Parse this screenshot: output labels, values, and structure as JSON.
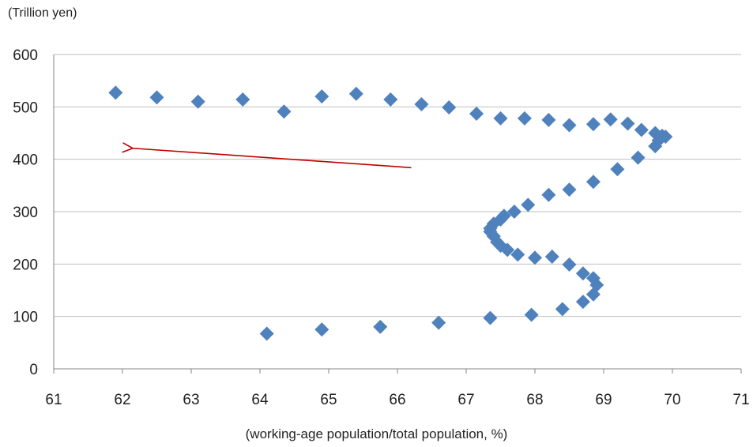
{
  "chart_data": {
    "type": "scatter",
    "title": "",
    "xlabel": "(working-age population/total population, %)",
    "ylabel": "(Trillion yen)",
    "xlim": [
      61,
      71
    ],
    "ylim": [
      0,
      600
    ],
    "x_ticks": [
      61,
      62,
      63,
      64,
      65,
      66,
      67,
      68,
      69,
      70,
      71
    ],
    "y_ticks": [
      0,
      100,
      200,
      300,
      400,
      500,
      600
    ],
    "grid": "horizontal",
    "legend": "none",
    "marker": "diamond",
    "colors": {
      "marker": "#4F81BD",
      "arrow": "#C00000",
      "grid": "#BFBFBF"
    },
    "series": [
      {
        "points": [
          {
            "x": 64.1,
            "y": 67
          },
          {
            "x": 64.9,
            "y": 75
          },
          {
            "x": 65.75,
            "y": 80
          },
          {
            "x": 66.6,
            "y": 88
          },
          {
            "x": 67.35,
            "y": 97
          },
          {
            "x": 67.95,
            "y": 103
          },
          {
            "x": 68.4,
            "y": 114
          },
          {
            "x": 68.7,
            "y": 128
          },
          {
            "x": 68.85,
            "y": 142
          },
          {
            "x": 68.9,
            "y": 160
          },
          {
            "x": 68.85,
            "y": 173
          },
          {
            "x": 68.7,
            "y": 182
          },
          {
            "x": 68.5,
            "y": 199
          },
          {
            "x": 68.25,
            "y": 214
          },
          {
            "x": 68.0,
            "y": 212
          },
          {
            "x": 67.75,
            "y": 218
          },
          {
            "x": 67.6,
            "y": 227
          },
          {
            "x": 67.5,
            "y": 235
          },
          {
            "x": 67.45,
            "y": 242
          },
          {
            "x": 67.4,
            "y": 253
          },
          {
            "x": 67.35,
            "y": 262
          },
          {
            "x": 67.35,
            "y": 268
          },
          {
            "x": 67.4,
            "y": 277
          },
          {
            "x": 67.5,
            "y": 285
          },
          {
            "x": 67.55,
            "y": 292
          },
          {
            "x": 67.7,
            "y": 300
          },
          {
            "x": 67.9,
            "y": 313
          },
          {
            "x": 68.2,
            "y": 332
          },
          {
            "x": 68.5,
            "y": 342
          },
          {
            "x": 68.85,
            "y": 357
          },
          {
            "x": 69.2,
            "y": 381
          },
          {
            "x": 69.5,
            "y": 403
          },
          {
            "x": 69.75,
            "y": 425
          },
          {
            "x": 69.8,
            "y": 436
          },
          {
            "x": 69.85,
            "y": 445
          },
          {
            "x": 69.9,
            "y": 443
          },
          {
            "x": 69.75,
            "y": 450
          },
          {
            "x": 69.55,
            "y": 456
          },
          {
            "x": 69.35,
            "y": 468
          },
          {
            "x": 69.1,
            "y": 476
          },
          {
            "x": 68.85,
            "y": 467
          },
          {
            "x": 68.5,
            "y": 465
          },
          {
            "x": 68.2,
            "y": 475
          },
          {
            "x": 67.85,
            "y": 478
          },
          {
            "x": 67.5,
            "y": 478
          },
          {
            "x": 67.15,
            "y": 487
          },
          {
            "x": 66.75,
            "y": 499
          },
          {
            "x": 66.35,
            "y": 505
          },
          {
            "x": 65.9,
            "y": 514
          },
          {
            "x": 65.4,
            "y": 525
          },
          {
            "x": 64.9,
            "y": 520
          },
          {
            "x": 64.35,
            "y": 491
          },
          {
            "x": 63.75,
            "y": 514
          },
          {
            "x": 63.1,
            "y": 510
          },
          {
            "x": 62.5,
            "y": 518
          },
          {
            "x": 61.9,
            "y": 527
          }
        ]
      }
    ],
    "annotations": [
      {
        "type": "arrow",
        "from": {
          "x": 66.2,
          "y": 384
        },
        "to": {
          "x": 62.15,
          "y": 421
        }
      }
    ]
  }
}
